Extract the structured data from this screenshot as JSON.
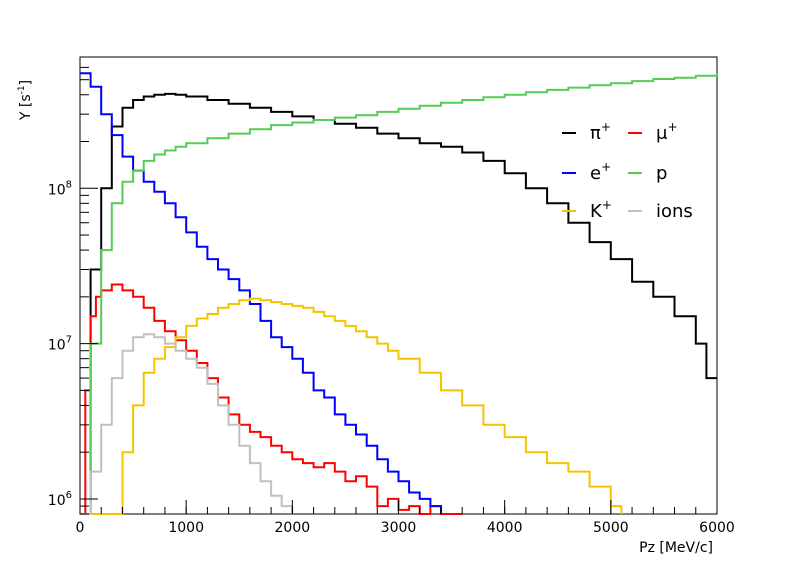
{
  "chart_data": {
    "type": "line",
    "style": "step-histogram",
    "xlabel": "Pz [MeV/c]",
    "ylabel_base": "Y [s",
    "ylabel_sup": "-1",
    "ylabel_end": "]",
    "xlim": [
      0,
      6000
    ],
    "ylim": [
      800000,
      700000000
    ],
    "yscale": "log",
    "grid": false,
    "legend_position": "top-right",
    "x_ticks": [
      {
        "value": 0,
        "label": "0"
      },
      {
        "value": 1000,
        "label": "1000"
      },
      {
        "value": 2000,
        "label": "2000"
      },
      {
        "value": 3000,
        "label": "3000"
      },
      {
        "value": 4000,
        "label": "4000"
      },
      {
        "value": 5000,
        "label": "5000"
      },
      {
        "value": 6000,
        "label": "6000"
      }
    ],
    "y_ticks": [
      {
        "value": 1000000,
        "base": "10",
        "exp": "6"
      },
      {
        "value": 10000000,
        "base": "10",
        "exp": "7"
      },
      {
        "value": 100000000,
        "base": "10",
        "exp": "8"
      }
    ],
    "series": [
      {
        "name": "π",
        "sup": "+",
        "color": "#000000",
        "points": [
          [
            0,
            800000
          ],
          [
            100,
            30000000
          ],
          [
            200,
            100000000
          ],
          [
            300,
            250000000
          ],
          [
            400,
            330000000
          ],
          [
            500,
            370000000
          ],
          [
            600,
            390000000
          ],
          [
            700,
            400000000
          ],
          [
            800,
            405000000
          ],
          [
            900,
            400000000
          ],
          [
            1000,
            390000000
          ],
          [
            1200,
            370000000
          ],
          [
            1400,
            350000000
          ],
          [
            1600,
            330000000
          ],
          [
            1800,
            310000000
          ],
          [
            2000,
            290000000
          ],
          [
            2200,
            275000000
          ],
          [
            2400,
            260000000
          ],
          [
            2600,
            245000000
          ],
          [
            2800,
            225000000
          ],
          [
            3000,
            210000000
          ],
          [
            3200,
            195000000
          ],
          [
            3400,
            185000000
          ],
          [
            3600,
            170000000
          ],
          [
            3800,
            150000000
          ],
          [
            4000,
            125000000
          ],
          [
            4200,
            100000000
          ],
          [
            4400,
            80000000
          ],
          [
            4600,
            60000000
          ],
          [
            4800,
            45000000
          ],
          [
            5000,
            35000000
          ],
          [
            5200,
            25000000
          ],
          [
            5400,
            20000000
          ],
          [
            5600,
            15000000
          ],
          [
            5800,
            10000000
          ],
          [
            5900,
            6000000
          ],
          [
            6000,
            6000000
          ]
        ]
      },
      {
        "name": "μ",
        "sup": "+",
        "color": "#ff0000",
        "points": [
          [
            0,
            800000
          ],
          [
            50,
            5000000
          ],
          [
            100,
            15000000
          ],
          [
            150,
            20000000
          ],
          [
            200,
            22000000
          ],
          [
            300,
            24000000
          ],
          [
            400,
            22000000
          ],
          [
            500,
            20000000
          ],
          [
            600,
            17000000
          ],
          [
            700,
            14000000
          ],
          [
            800,
            12000000
          ],
          [
            900,
            10500000
          ],
          [
            1000,
            9000000
          ],
          [
            1100,
            7500000
          ],
          [
            1200,
            6000000
          ],
          [
            1300,
            4500000
          ],
          [
            1400,
            3500000
          ],
          [
            1500,
            3000000
          ],
          [
            1600,
            2700000
          ],
          [
            1700,
            2500000
          ],
          [
            1800,
            2200000
          ],
          [
            1900,
            2000000
          ],
          [
            2000,
            1800000
          ],
          [
            2100,
            1700000
          ],
          [
            2200,
            1600000
          ],
          [
            2300,
            1700000
          ],
          [
            2400,
            1500000
          ],
          [
            2500,
            1300000
          ],
          [
            2600,
            1400000
          ],
          [
            2700,
            1200000
          ],
          [
            2800,
            900000
          ],
          [
            2900,
            1000000
          ],
          [
            3000,
            850000
          ],
          [
            3100,
            900000
          ],
          [
            3200,
            800000
          ],
          [
            3300,
            900000
          ],
          [
            3400,
            800000
          ],
          [
            3500,
            800000
          ],
          [
            3600,
            800000
          ]
        ]
      },
      {
        "name": "e",
        "sup": "+",
        "color": "#0000ff",
        "points": [
          [
            0,
            550000000
          ],
          [
            100,
            450000000
          ],
          [
            200,
            300000000
          ],
          [
            300,
            220000000
          ],
          [
            400,
            160000000
          ],
          [
            500,
            130000000
          ],
          [
            600,
            110000000
          ],
          [
            700,
            95000000
          ],
          [
            800,
            80000000
          ],
          [
            900,
            65000000
          ],
          [
            1000,
            52000000
          ],
          [
            1100,
            42000000
          ],
          [
            1200,
            35000000
          ],
          [
            1300,
            30000000
          ],
          [
            1400,
            26000000
          ],
          [
            1500,
            22000000
          ],
          [
            1600,
            18000000
          ],
          [
            1700,
            14000000
          ],
          [
            1800,
            11000000
          ],
          [
            1900,
            9500000
          ],
          [
            2000,
            8000000
          ],
          [
            2100,
            6500000
          ],
          [
            2200,
            5000000
          ],
          [
            2300,
            4500000
          ],
          [
            2400,
            3500000
          ],
          [
            2500,
            3000000
          ],
          [
            2600,
            2600000
          ],
          [
            2700,
            2200000
          ],
          [
            2800,
            1800000
          ],
          [
            2900,
            1500000
          ],
          [
            3000,
            1300000
          ],
          [
            3100,
            1100000
          ],
          [
            3200,
            1000000
          ],
          [
            3300,
            900000
          ],
          [
            3400,
            800000
          ]
        ]
      },
      {
        "name": "p",
        "sup": "",
        "color": "#55cc55",
        "points": [
          [
            0,
            800000
          ],
          [
            100,
            10000000
          ],
          [
            200,
            40000000
          ],
          [
            300,
            80000000
          ],
          [
            400,
            110000000
          ],
          [
            500,
            130000000
          ],
          [
            600,
            150000000
          ],
          [
            700,
            165000000
          ],
          [
            800,
            175000000
          ],
          [
            900,
            185000000
          ],
          [
            1000,
            195000000
          ],
          [
            1200,
            210000000
          ],
          [
            1400,
            225000000
          ],
          [
            1600,
            240000000
          ],
          [
            1800,
            255000000
          ],
          [
            2000,
            265000000
          ],
          [
            2200,
            275000000
          ],
          [
            2400,
            285000000
          ],
          [
            2600,
            295000000
          ],
          [
            2800,
            310000000
          ],
          [
            3000,
            325000000
          ],
          [
            3200,
            340000000
          ],
          [
            3400,
            355000000
          ],
          [
            3600,
            370000000
          ],
          [
            3800,
            385000000
          ],
          [
            4000,
            400000000
          ],
          [
            4200,
            415000000
          ],
          [
            4400,
            430000000
          ],
          [
            4600,
            445000000
          ],
          [
            4800,
            460000000
          ],
          [
            5000,
            475000000
          ],
          [
            5200,
            490000000
          ],
          [
            5400,
            505000000
          ],
          [
            5600,
            515000000
          ],
          [
            5800,
            530000000
          ],
          [
            6000,
            550000000
          ]
        ]
      },
      {
        "name": "K",
        "sup": "+",
        "color": "#f5c400",
        "points": [
          [
            0,
            800000
          ],
          [
            300,
            800000
          ],
          [
            400,
            2000000
          ],
          [
            500,
            4000000
          ],
          [
            600,
            6500000
          ],
          [
            700,
            8000000
          ],
          [
            800,
            9500000
          ],
          [
            900,
            11000000
          ],
          [
            1000,
            13000000
          ],
          [
            1100,
            14500000
          ],
          [
            1200,
            15500000
          ],
          [
            1300,
            17000000
          ],
          [
            1400,
            18000000
          ],
          [
            1500,
            19000000
          ],
          [
            1600,
            19500000
          ],
          [
            1700,
            19000000
          ],
          [
            1800,
            18500000
          ],
          [
            1900,
            18000000
          ],
          [
            2000,
            17500000
          ],
          [
            2100,
            17000000
          ],
          [
            2200,
            16000000
          ],
          [
            2300,
            15000000
          ],
          [
            2400,
            14000000
          ],
          [
            2500,
            13000000
          ],
          [
            2600,
            12000000
          ],
          [
            2700,
            11000000
          ],
          [
            2800,
            10000000
          ],
          [
            2900,
            9000000
          ],
          [
            3000,
            8000000
          ],
          [
            3200,
            6500000
          ],
          [
            3400,
            5000000
          ],
          [
            3600,
            4000000
          ],
          [
            3800,
            3000000
          ],
          [
            4000,
            2500000
          ],
          [
            4200,
            2000000
          ],
          [
            4400,
            1700000
          ],
          [
            4600,
            1500000
          ],
          [
            4800,
            1200000
          ],
          [
            5000,
            900000
          ],
          [
            5100,
            800000
          ]
        ]
      },
      {
        "name": "ions",
        "sup": "",
        "color": "#c0c0c0",
        "points": [
          [
            0,
            800000
          ],
          [
            100,
            1500000
          ],
          [
            200,
            3000000
          ],
          [
            300,
            6000000
          ],
          [
            400,
            9000000
          ],
          [
            500,
            11000000
          ],
          [
            600,
            11500000
          ],
          [
            700,
            11000000
          ],
          [
            800,
            10000000
          ],
          [
            900,
            9000000
          ],
          [
            1000,
            8000000
          ],
          [
            1100,
            7000000
          ],
          [
            1200,
            5500000
          ],
          [
            1300,
            4000000
          ],
          [
            1400,
            3000000
          ],
          [
            1500,
            2200000
          ],
          [
            1600,
            1700000
          ],
          [
            1700,
            1300000
          ],
          [
            1800,
            1050000
          ],
          [
            1900,
            900000
          ],
          [
            2000,
            800000
          ]
        ]
      }
    ]
  }
}
